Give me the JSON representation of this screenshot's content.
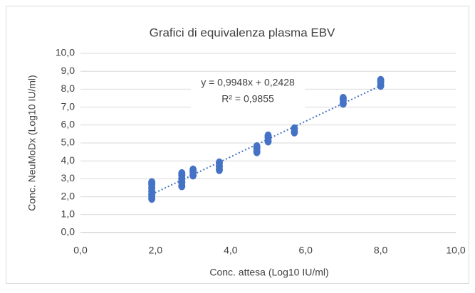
{
  "chart_data": {
    "type": "scatter",
    "title": "Grafici di equivalenza plasma EBV",
    "x_label": "Conc. attesa (Log10 IU/ml)",
    "y_label": "Conc. NeuMoDx (Log10 IU/ml)",
    "series": [
      {
        "color": "#4472c4",
        "x": [
          1.9,
          1.9,
          1.9,
          1.9,
          1.9,
          1.9,
          2.7,
          2.7,
          2.7,
          2.7,
          2.7,
          3.0,
          3.0,
          3.0,
          3.7,
          3.7,
          3.7,
          4.7,
          4.7,
          4.7,
          5.0,
          5.0,
          5.0,
          5.7,
          5.7,
          7.0,
          7.0,
          7.0,
          8.0,
          8.0,
          8.0
        ],
        "values": [
          1.9,
          2.1,
          2.3,
          2.5,
          2.7,
          2.8,
          2.6,
          2.8,
          3.0,
          3.2,
          3.3,
          3.2,
          3.4,
          3.5,
          3.5,
          3.7,
          3.9,
          4.5,
          4.7,
          4.8,
          5.1,
          5.3,
          5.4,
          5.6,
          5.8,
          7.2,
          7.4,
          7.5,
          8.2,
          8.4,
          8.5
        ]
      }
    ],
    "trendline": {
      "slope": 0.9948,
      "intercept": 0.2428,
      "label": "y = 0,9948x + 0,2428",
      "r2": 0.9855,
      "r2_label": "R² = 0,9855"
    },
    "xlim": [
      0,
      10
    ],
    "xticks": [
      {
        "value": 0,
        "label": "0,0"
      },
      {
        "value": 2,
        "label": "2,0"
      },
      {
        "value": 4,
        "label": "4,0"
      },
      {
        "value": 6,
        "label": "6,0"
      },
      {
        "value": 8,
        "label": "8,0"
      },
      {
        "value": 10,
        "label": "10,0"
      }
    ],
    "ylim": [
      0,
      10
    ],
    "yticks": [
      {
        "value": 0,
        "label": "0,0"
      },
      {
        "value": 1,
        "label": "1,0"
      },
      {
        "value": 2,
        "label": "2,0"
      },
      {
        "value": 3,
        "label": "3,0"
      },
      {
        "value": 4,
        "label": "4,0"
      },
      {
        "value": 5,
        "label": "5,0"
      },
      {
        "value": 6,
        "label": "6,0"
      },
      {
        "value": 7,
        "label": "7,0"
      },
      {
        "value": 8,
        "label": "8,0"
      },
      {
        "value": 9,
        "label": "9,0"
      },
      {
        "value": 10,
        "label": "10,0"
      }
    ],
    "grid": true
  }
}
